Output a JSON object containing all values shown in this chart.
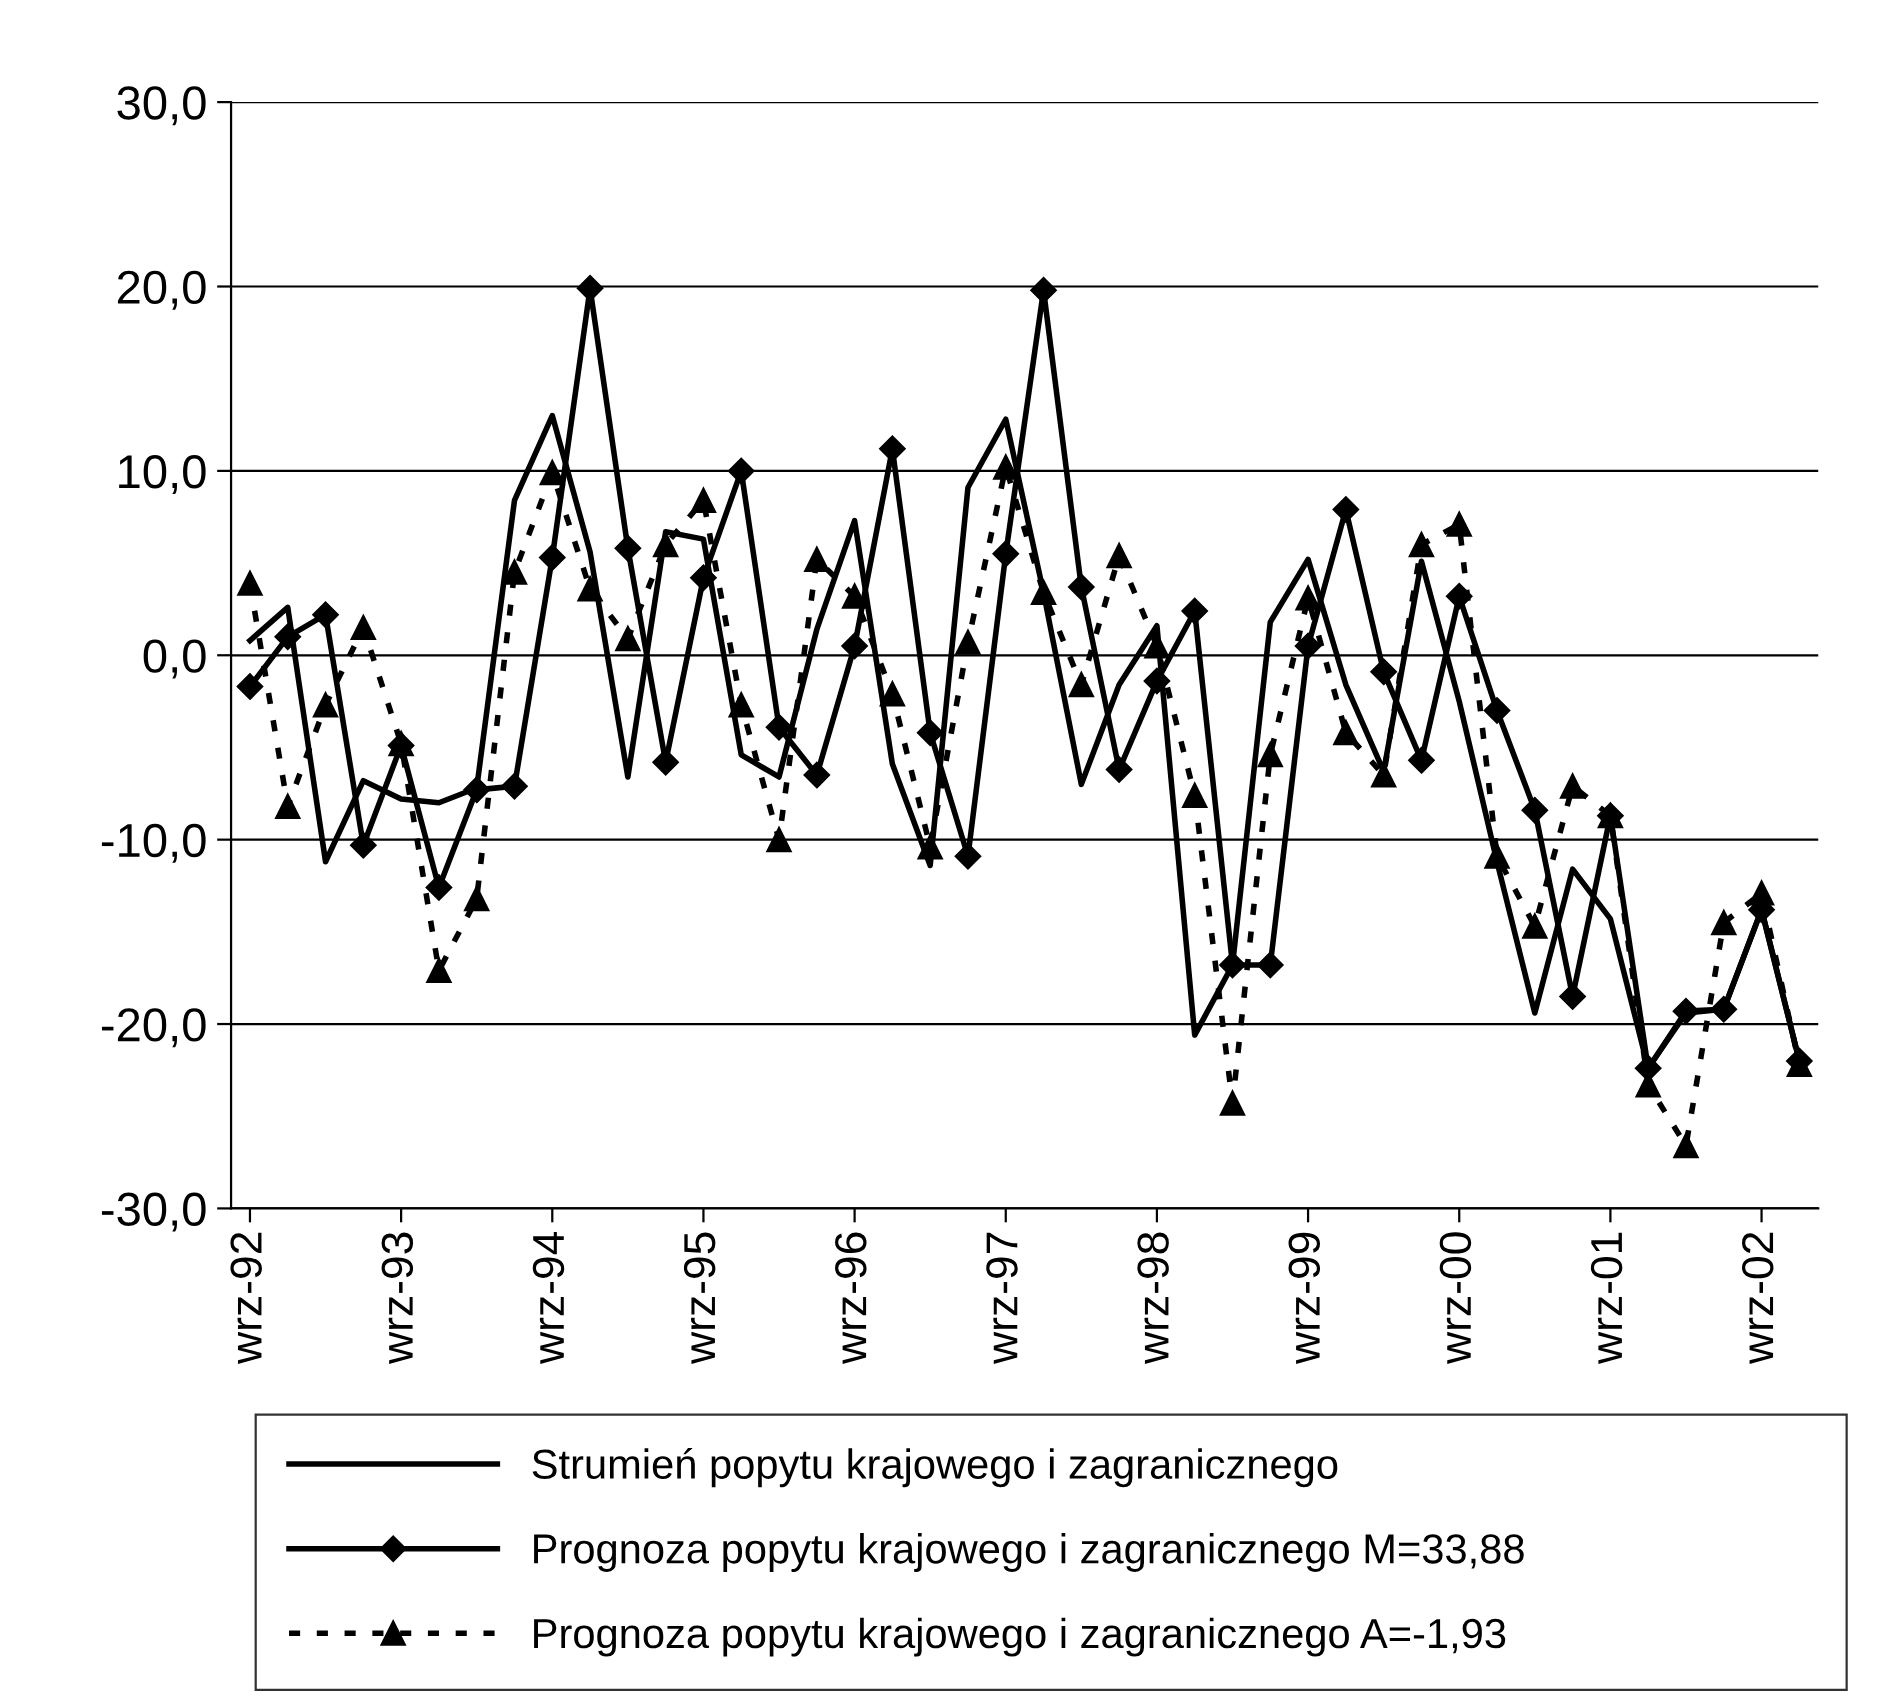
{
  "chart_data": {
    "type": "line",
    "categories": [
      "wrz-92",
      null,
      null,
      null,
      "wrz-93",
      null,
      null,
      null,
      "wrz-94",
      null,
      null,
      null,
      "wrz-95",
      null,
      null,
      null,
      "wrz-96",
      null,
      null,
      null,
      "wrz-97",
      null,
      null,
      null,
      "wrz-98",
      null,
      null,
      null,
      "wrz-99",
      null,
      null,
      null,
      "wrz-00",
      null,
      null,
      null,
      "wrz-01",
      null,
      null,
      null,
      "wrz-02",
      null
    ],
    "series": [
      {
        "name": "Strumień popytu krajowego i zagranicznego",
        "color": "#000000",
        "marker": "none",
        "line_style": "solid",
        "values": [
          0.8,
          2.6,
          -11.2,
          -6.8,
          -7.8,
          -8.0,
          -7.2,
          8.4,
          13.0,
          5.6,
          -6.6,
          6.7,
          6.3,
          -5.4,
          -6.6,
          1.4,
          7.3,
          -5.9,
          -11.4,
          9.1,
          12.8,
          3.4,
          -7.0,
          -1.6,
          1.6,
          -20.6,
          -16.8,
          1.8,
          5.2,
          -1.6,
          -6.3,
          5.1,
          -2.5,
          -11.2,
          -19.4,
          -11.6,
          -14.3,
          -22.4,
          -19.4,
          -19.2,
          -13.8,
          -22.0
        ]
      },
      {
        "name": "Prognoza popytu krajowego i zagranicznego M=33,88",
        "color": "#000000",
        "marker": "diamond",
        "line_style": "solid",
        "values": [
          -1.7,
          1.0,
          2.2,
          -10.3,
          -4.9,
          -12.6,
          -7.3,
          -7.1,
          5.3,
          19.9,
          5.8,
          -5.8,
          4.2,
          10.0,
          -3.9,
          -6.5,
          0.5,
          11.2,
          -4.2,
          -10.9,
          5.5,
          19.8,
          3.7,
          -6.2,
          -1.4,
          2.4,
          -16.8,
          -16.8,
          0.5,
          7.9,
          -0.9,
          -5.7,
          3.2,
          -3.0,
          -8.4,
          -18.5,
          -8.7,
          -22.4,
          -19.3,
          -19.2,
          -13.8,
          -22.0
        ]
      },
      {
        "name": "Prognoza popytu krajowego i zagranicznego A=-1,93",
        "color": "#000000",
        "marker": "triangle",
        "line_style": "dotted",
        "values": [
          3.9,
          -8.2,
          -2.7,
          1.5,
          -4.8,
          -17.1,
          -13.2,
          4.5,
          9.9,
          3.6,
          0.9,
          6.0,
          8.4,
          -2.7,
          -10.0,
          5.2,
          3.2,
          -2.1,
          -10.4,
          0.7,
          10.2,
          3.4,
          -1.6,
          5.4,
          0.5,
          -7.6,
          -24.3,
          -5.4,
          3.1,
          -4.2,
          -6.5,
          6.0,
          7.1,
          -10.9,
          -14.7,
          -7.1,
          -8.7,
          -23.3,
          -26.6,
          -14.5,
          -12.9,
          -22.2
        ]
      }
    ],
    "ylim": [
      -30,
      30
    ],
    "yticks": [
      {
        "value": -30,
        "label": "-30,0"
      },
      {
        "value": -20,
        "label": "-20,0"
      },
      {
        "value": -10,
        "label": "-10,0"
      },
      {
        "value": 0,
        "label": "0,0"
      },
      {
        "value": 10,
        "label": "10,0"
      },
      {
        "value": 20,
        "label": "20,0"
      },
      {
        "value": 30,
        "label": "30,0"
      }
    ],
    "grid": "y",
    "legend": "bottom"
  }
}
